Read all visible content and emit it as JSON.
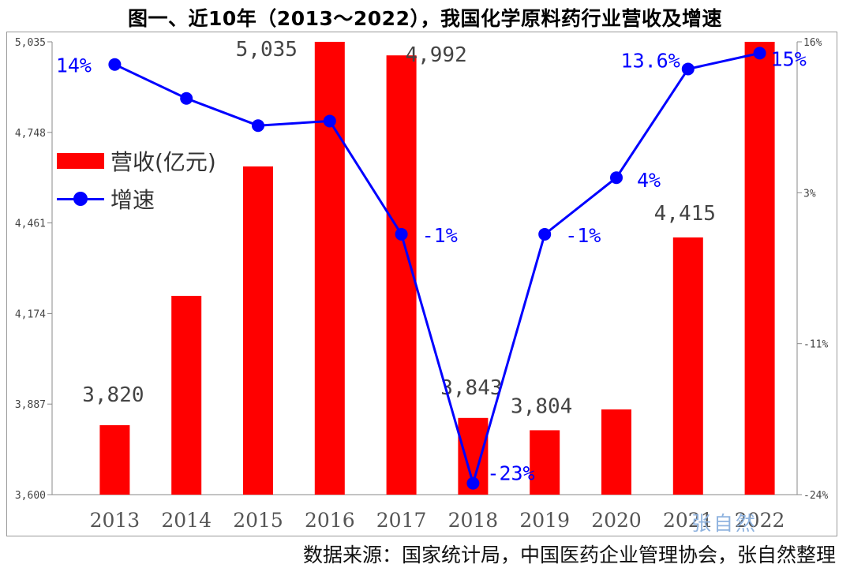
{
  "title": "图一、近10年（2013～2022），我国化学原料药行业营收及增速",
  "footer": "数据来源：国家统计局，中国医药企业管理协会，张自然整理",
  "watermark": "张自然",
  "legend": {
    "revenue_label": "营收(亿元)",
    "growth_label": "增速"
  },
  "chart_data": {
    "type": "bar+line",
    "categories": [
      "2013",
      "2014",
      "2015",
      "2016",
      "2017",
      "2018",
      "2019",
      "2020",
      "2021",
      "2022"
    ],
    "series": [
      {
        "name": "营收(亿元)",
        "type": "bar",
        "axis": "left",
        "color": "#ff0000",
        "values": [
          3820,
          4230,
          4640,
          5035,
          4992,
          3843,
          3804,
          3870,
          4415,
          5035
        ],
        "labels": [
          "3,820",
          "",
          "",
          "5,035",
          "4,992",
          "3,843",
          "3,804",
          "",
          "4,415",
          ""
        ]
      },
      {
        "name": "增速",
        "type": "line",
        "axis": "right",
        "color": "#0000ff",
        "values": [
          14,
          11,
          8.6,
          9,
          -1,
          -23,
          -1,
          4,
          13.6,
          15
        ],
        "labels": [
          "14%",
          "",
          "",
          "",
          "-1%",
          "-23%",
          "-1%",
          "4%",
          "13.6%",
          "15%"
        ]
      }
    ],
    "left_axis": {
      "min": 3600,
      "max": 5035,
      "ticks": [
        "3,600",
        "3,887",
        "4,174",
        "4,461",
        "4,748",
        "5,035"
      ]
    },
    "right_axis": {
      "min": -24,
      "max": 16,
      "ticks": [
        "-24%",
        "-11%",
        "3%",
        "16%"
      ]
    }
  }
}
